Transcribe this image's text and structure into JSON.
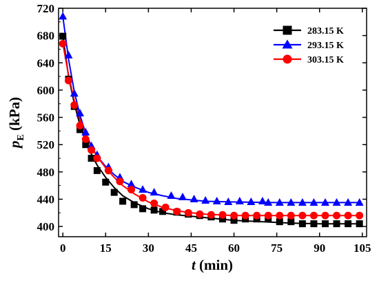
{
  "chart_data": {
    "type": "line",
    "xlabel": {
      "var": "t",
      "unit": " (min)"
    },
    "ylabel": {
      "var": "p",
      "sub": "E",
      "unit": " (kPa)"
    },
    "xlim": [
      -1.5,
      106.5
    ],
    "ylim": [
      385,
      720
    ],
    "xticks": [
      0,
      15,
      30,
      45,
      60,
      75,
      90,
      105
    ],
    "yticks": [
      400,
      440,
      480,
      520,
      560,
      600,
      640,
      680,
      720
    ],
    "grid": false,
    "legend_position": "top-right",
    "series": [
      {
        "name": "283.15 K",
        "color": "#000000",
        "marker": "square",
        "points": [
          [
            0,
            679
          ],
          [
            2,
            616
          ],
          [
            4,
            576
          ],
          [
            6,
            542
          ],
          [
            8,
            520
          ],
          [
            10,
            500
          ],
          [
            12,
            482
          ],
          [
            15,
            465
          ],
          [
            18,
            450
          ],
          [
            21,
            437
          ],
          [
            25,
            432
          ],
          [
            28,
            426
          ],
          [
            32,
            424
          ],
          [
            35,
            422
          ],
          [
            40,
            421
          ],
          [
            44,
            418
          ],
          [
            48,
            416
          ],
          [
            52,
            414
          ],
          [
            56,
            411
          ],
          [
            60,
            409
          ],
          [
            64,
            411
          ],
          [
            68,
            411
          ],
          [
            72,
            411
          ],
          [
            76,
            407
          ],
          [
            80,
            407
          ],
          [
            84,
            404
          ],
          [
            88,
            404
          ],
          [
            92,
            404
          ],
          [
            96,
            404
          ],
          [
            100,
            404
          ],
          [
            104,
            404
          ]
        ],
        "fit": [
          [
            0,
            680
          ],
          [
            2,
            620
          ],
          [
            4,
            580
          ],
          [
            6,
            549
          ],
          [
            8,
            525
          ],
          [
            10,
            506
          ],
          [
            12,
            490
          ],
          [
            15,
            472
          ],
          [
            18,
            457
          ],
          [
            21,
            445
          ],
          [
            25,
            435
          ],
          [
            30,
            426
          ],
          [
            35,
            420
          ],
          [
            40,
            417
          ],
          [
            45,
            415
          ],
          [
            50,
            413
          ],
          [
            55,
            411
          ],
          [
            60,
            409
          ],
          [
            65,
            408
          ],
          [
            70,
            407
          ],
          [
            75,
            406
          ],
          [
            80,
            405
          ],
          [
            90,
            404
          ],
          [
            104,
            404
          ]
        ]
      },
      {
        "name": "293.15 K",
        "color": "#0000ff",
        "marker": "triangle",
        "points": [
          [
            0,
            708
          ],
          [
            2,
            651
          ],
          [
            4,
            595
          ],
          [
            6,
            566
          ],
          [
            8,
            538
          ],
          [
            10,
            518
          ],
          [
            12,
            505
          ],
          [
            16,
            487
          ],
          [
            20,
            472
          ],
          [
            24,
            462
          ],
          [
            28,
            454
          ],
          [
            32,
            450
          ],
          [
            38,
            445
          ],
          [
            42,
            443
          ],
          [
            46,
            440
          ],
          [
            50,
            438
          ],
          [
            54,
            437
          ],
          [
            58,
            436
          ],
          [
            62,
            437
          ],
          [
            66,
            436
          ],
          [
            70,
            437
          ],
          [
            72,
            435
          ],
          [
            76,
            435
          ],
          [
            80,
            435
          ],
          [
            84,
            435
          ],
          [
            88,
            435
          ],
          [
            92,
            435
          ],
          [
            96,
            435
          ],
          [
            100,
            435
          ],
          [
            104,
            435
          ]
        ],
        "fit": [
          [
            0,
            708
          ],
          [
            2,
            645
          ],
          [
            4,
            598
          ],
          [
            6,
            563
          ],
          [
            8,
            537
          ],
          [
            10,
            518
          ],
          [
            12,
            503
          ],
          [
            15,
            488
          ],
          [
            18,
            476
          ],
          [
            21,
            466
          ],
          [
            25,
            458
          ],
          [
            30,
            450
          ],
          [
            35,
            445
          ],
          [
            40,
            441
          ],
          [
            45,
            439
          ],
          [
            50,
            437
          ],
          [
            60,
            436
          ],
          [
            75,
            435
          ],
          [
            104,
            435
          ]
        ]
      },
      {
        "name": "303.15 K",
        "color": "#ff0000",
        "marker": "circle",
        "points": [
          [
            0,
            668
          ],
          [
            2,
            614
          ],
          [
            4,
            578
          ],
          [
            6,
            548
          ],
          [
            8,
            528
          ],
          [
            10,
            512
          ],
          [
            12,
            500
          ],
          [
            16,
            482
          ],
          [
            20,
            466
          ],
          [
            24,
            454
          ],
          [
            28,
            442
          ],
          [
            32,
            434
          ],
          [
            36,
            428
          ],
          [
            40,
            422
          ],
          [
            44,
            420
          ],
          [
            48,
            418
          ],
          [
            52,
            417
          ],
          [
            56,
            417
          ],
          [
            60,
            416
          ],
          [
            64,
            416
          ],
          [
            68,
            416
          ],
          [
            72,
            416
          ],
          [
            76,
            416
          ],
          [
            80,
            416
          ],
          [
            84,
            416
          ],
          [
            88,
            416
          ],
          [
            92,
            416
          ],
          [
            96,
            416
          ],
          [
            100,
            416
          ],
          [
            104,
            416
          ]
        ],
        "fit": [
          [
            0,
            668
          ],
          [
            2,
            622
          ],
          [
            4,
            585
          ],
          [
            6,
            557
          ],
          [
            8,
            535
          ],
          [
            10,
            517
          ],
          [
            12,
            503
          ],
          [
            15,
            486
          ],
          [
            18,
            472
          ],
          [
            21,
            460
          ],
          [
            25,
            448
          ],
          [
            30,
            436
          ],
          [
            35,
            428
          ],
          [
            40,
            423
          ],
          [
            45,
            420
          ],
          [
            50,
            418
          ],
          [
            55,
            417
          ],
          [
            60,
            416
          ],
          [
            104,
            416
          ]
        ]
      }
    ]
  }
}
